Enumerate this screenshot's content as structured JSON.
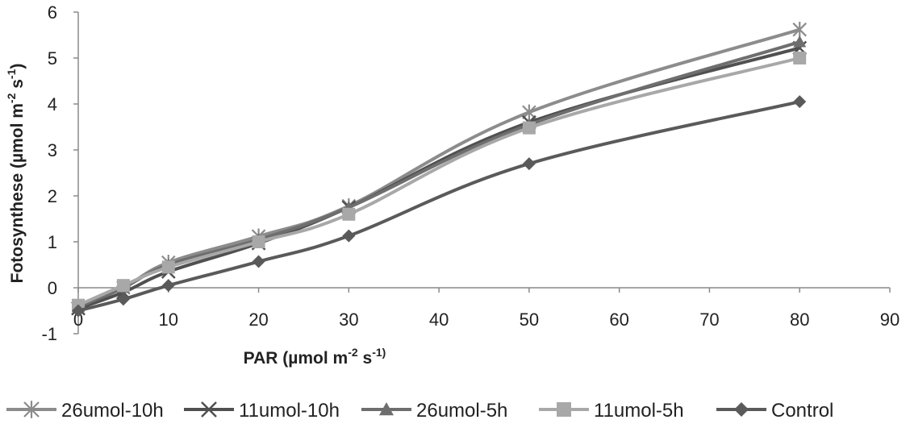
{
  "chart_data": {
    "type": "line",
    "xlabel": {
      "text": "PAR (µmol m",
      "sup1": "-2",
      "mid": " s",
      "sup2": "-1)"
    },
    "ylabel": {
      "text": "Fotosynthese (µmol m",
      "sup1": "-2",
      "mid": "  s",
      "sup2": "-1",
      "end": ")"
    },
    "xlim": [
      0,
      90
    ],
    "ylim": [
      -1,
      6
    ],
    "x_ticks": [
      "0",
      "10",
      "20",
      "30",
      "40",
      "50",
      "60",
      "70",
      "80",
      "90"
    ],
    "y_ticks": [
      "-1",
      "0",
      "1",
      "2",
      "3",
      "4",
      "5",
      "6"
    ],
    "grid": false,
    "legend_position": "bottom",
    "x": [
      0,
      5,
      10,
      20,
      30,
      50,
      80
    ],
    "series": [
      {
        "name": "26umol-10h",
        "marker": "star",
        "color": "#8c8c8c",
        "values": [
          -0.45,
          0.0,
          0.55,
          1.12,
          1.78,
          3.82,
          5.62
        ]
      },
      {
        "name": "11umol-10h",
        "marker": "x",
        "color": "#505050",
        "values": [
          -0.45,
          -0.1,
          0.35,
          0.97,
          1.75,
          3.6,
          5.22
        ]
      },
      {
        "name": "26umol-5h",
        "marker": "triangle",
        "color": "#6e6e6e",
        "values": [
          -0.42,
          0.0,
          0.5,
          1.05,
          1.75,
          3.55,
          5.35
        ]
      },
      {
        "name": "11umol-5h",
        "marker": "square",
        "color": "#a8a8a8",
        "values": [
          -0.38,
          0.05,
          0.45,
          1.0,
          1.6,
          3.48,
          5.0
        ]
      },
      {
        "name": "Control",
        "marker": "diamond",
        "color": "#5a5a5a",
        "values": [
          -0.5,
          -0.25,
          0.05,
          0.57,
          1.13,
          2.7,
          4.05
        ]
      }
    ]
  }
}
